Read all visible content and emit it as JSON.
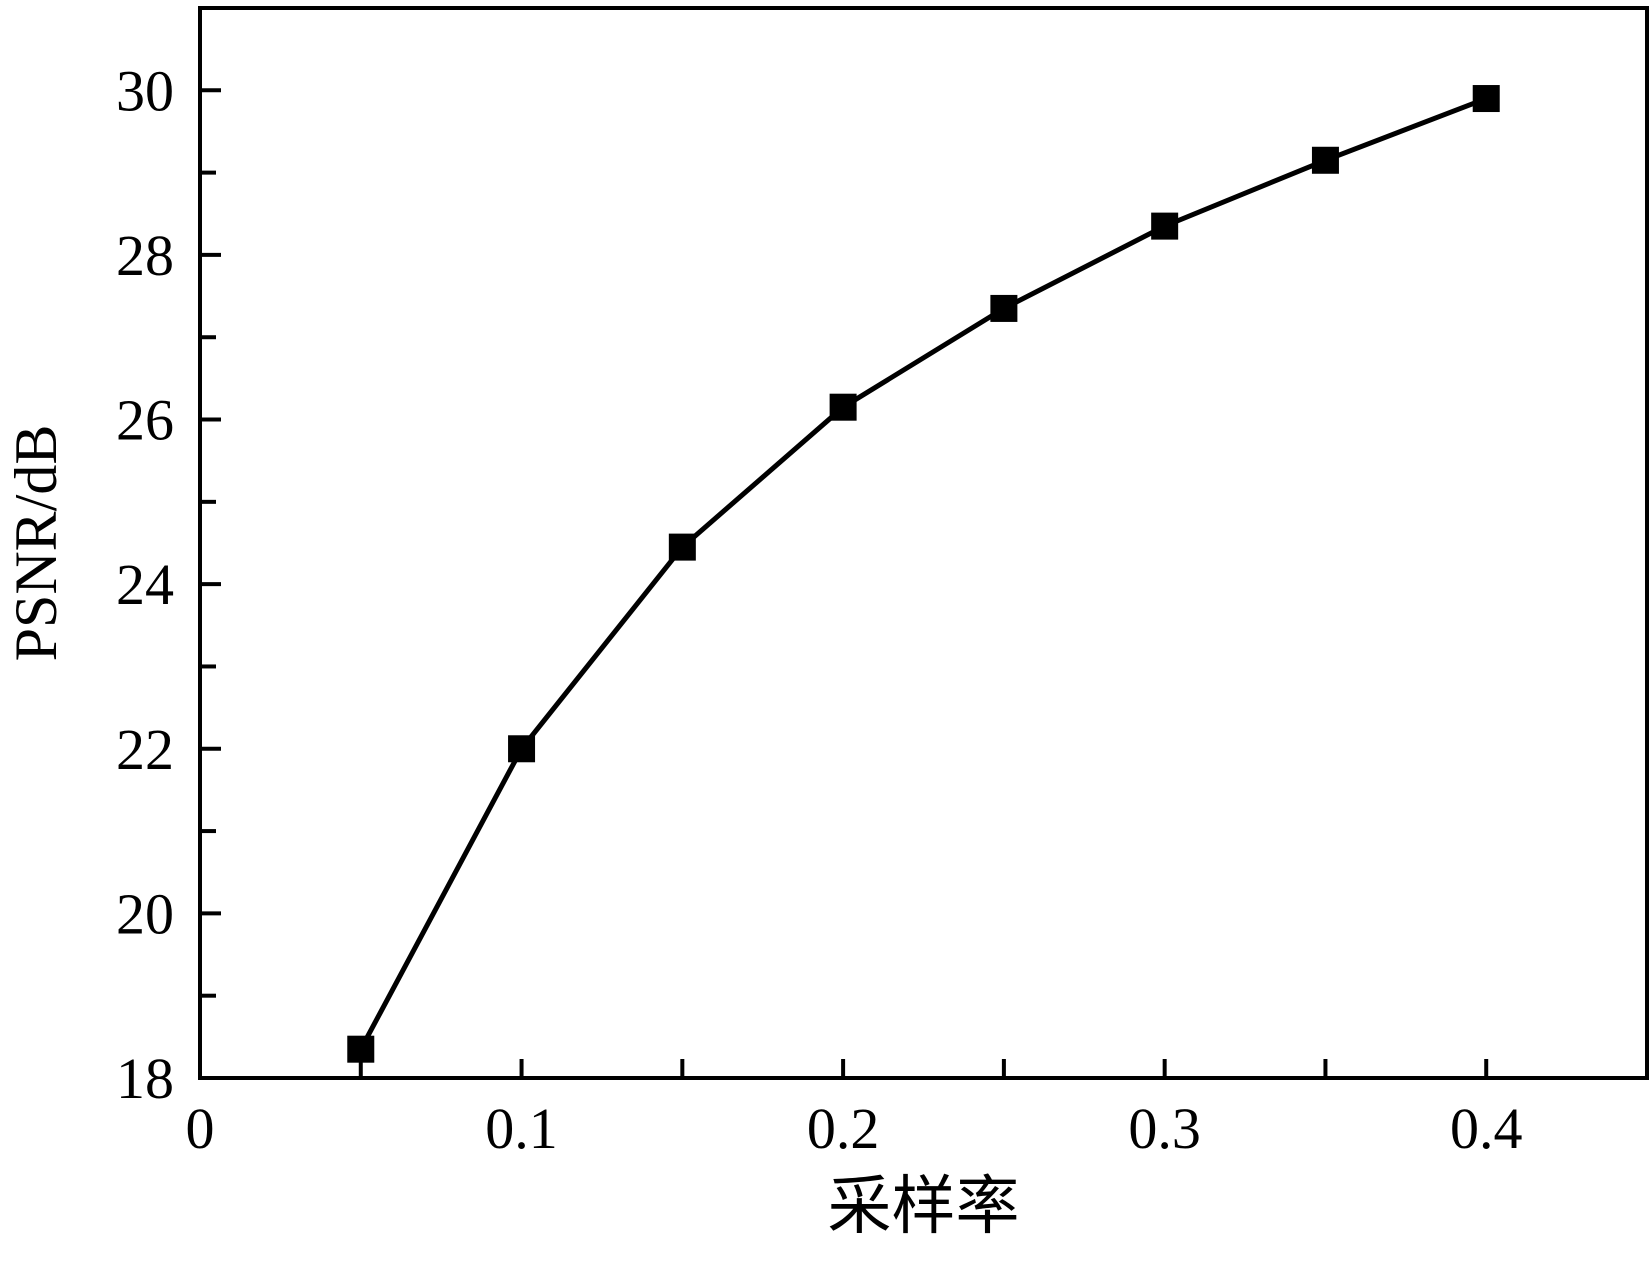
{
  "chart_data": {
    "type": "line",
    "title": "",
    "xlabel": "采样率",
    "ylabel": "PSNR/dB",
    "xlim": [
      0,
      0.45
    ],
    "ylim": [
      18,
      31
    ],
    "grid": false,
    "legend": "none",
    "frame": "box",
    "background_color": "#ffffff",
    "axis_color": "#000000",
    "x_minor_step": 0.05,
    "y_minor_step": 1,
    "x_major_ticks": [
      0,
      0.1,
      0.2,
      0.3,
      0.4
    ],
    "x_tick_labels": [
      "0",
      "0.1",
      "0.2",
      "0.3",
      "0.4"
    ],
    "y_major_ticks": [
      18,
      20,
      22,
      24,
      26,
      28,
      30
    ],
    "y_tick_labels": [
      "18",
      "20",
      "22",
      "24",
      "26",
      "28",
      "30"
    ],
    "series": [
      {
        "name": "PSNR",
        "color": "#000000",
        "marker": "filled-square",
        "marker_size": 27,
        "line_width": 5,
        "x": [
          0.05,
          0.1,
          0.15,
          0.2,
          0.25,
          0.3,
          0.35,
          0.4
        ],
        "values": [
          18.35,
          22.0,
          24.45,
          26.15,
          27.35,
          28.35,
          29.15,
          29.9
        ]
      }
    ]
  }
}
